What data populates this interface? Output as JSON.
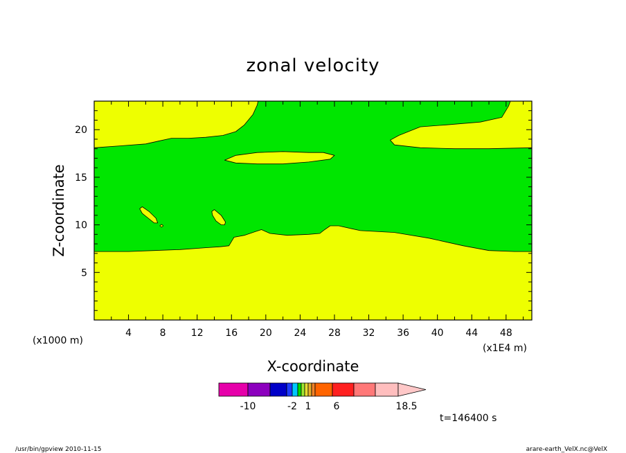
{
  "chart_data": {
    "type": "heatmap",
    "title": "zonal velocity",
    "xlabel": "X-coordinate",
    "ylabel": "Z-coordinate",
    "x_unit_left": "(x1000 m)",
    "x_unit_right": "(x1E4 m)",
    "xlim": [
      0,
      51
    ],
    "ylim": [
      0,
      23
    ],
    "xticks": [
      4,
      8,
      12,
      16,
      20,
      24,
      28,
      32,
      36,
      40,
      44,
      48
    ],
    "xtick_labels": [
      "4",
      "8",
      "12",
      "16",
      "20",
      "24",
      "28",
      "32",
      "36",
      "40",
      "44",
      "48"
    ],
    "yticks": [
      5,
      10,
      15,
      20
    ],
    "ytick_labels": [
      "5",
      "10",
      "15",
      "20"
    ],
    "background_color": "#eeff00",
    "regions": [
      {
        "name": "",
        "color": "#00e600",
        "points": [
          [
            0,
            18.1
          ],
          [
            3,
            18.3
          ],
          [
            6,
            18.5
          ],
          [
            7.5,
            18.8
          ],
          [
            9,
            19.1
          ],
          [
            11,
            19.1
          ],
          [
            13,
            19.2
          ],
          [
            15,
            19.4
          ],
          [
            16.5,
            19.8
          ],
          [
            17.5,
            20.5
          ],
          [
            18.5,
            21.6
          ],
          [
            19,
            22.6
          ],
          [
            19.1,
            23
          ],
          [
            48.5,
            23
          ],
          [
            48.3,
            22.5
          ],
          [
            47.5,
            21.3
          ],
          [
            45,
            20.8
          ],
          [
            41,
            20.5
          ],
          [
            38,
            20.3
          ],
          [
            35.5,
            19.4
          ],
          [
            34.5,
            18.9
          ],
          [
            35,
            18.4
          ],
          [
            38,
            18.1
          ],
          [
            42,
            18
          ],
          [
            46,
            18
          ],
          [
            51,
            18.1
          ],
          [
            51,
            7.2
          ],
          [
            49,
            7.2
          ],
          [
            46,
            7.3
          ],
          [
            43,
            7.8
          ],
          [
            39,
            8.6
          ],
          [
            35,
            9.2
          ],
          [
            31,
            9.4
          ],
          [
            28.5,
            9.9
          ],
          [
            27.5,
            9.9
          ],
          [
            26.7,
            9.4
          ],
          [
            26.3,
            9.1
          ],
          [
            25,
            9
          ],
          [
            22.5,
            8.9
          ],
          [
            20.5,
            9.1
          ],
          [
            19.5,
            9.5
          ],
          [
            18.8,
            9.3
          ],
          [
            17.5,
            8.9
          ],
          [
            16.3,
            8.7
          ],
          [
            16.1,
            8.4
          ],
          [
            15.7,
            7.8
          ],
          [
            14.7,
            7.7
          ],
          [
            13,
            7.6
          ],
          [
            10,
            7.4
          ],
          [
            7,
            7.3
          ],
          [
            4,
            7.2
          ],
          [
            0,
            7.2
          ]
        ]
      },
      {
        "name": "",
        "color": "#eeff00",
        "points": [
          [
            15.2,
            16.8
          ],
          [
            16.5,
            17.3
          ],
          [
            19,
            17.6
          ],
          [
            22,
            17.7
          ],
          [
            25,
            17.6
          ],
          [
            26.7,
            17.6
          ],
          [
            28,
            17.3
          ],
          [
            27.5,
            16.9
          ],
          [
            25,
            16.6
          ],
          [
            22,
            16.4
          ],
          [
            19,
            16.4
          ],
          [
            16.5,
            16.5
          ]
        ]
      },
      {
        "name": "",
        "color": "#eeff00",
        "points": [
          [
            5.3,
            11.7
          ],
          [
            5.6,
            11.9
          ],
          [
            6.4,
            11.4
          ],
          [
            7.2,
            10.7
          ],
          [
            7.4,
            10.2
          ],
          [
            7.0,
            10.2
          ],
          [
            6.3,
            10.7
          ],
          [
            5.6,
            11.2
          ]
        ]
      },
      {
        "name": "",
        "color": "#eeff00",
        "points": [
          [
            13.7,
            11.4
          ],
          [
            14,
            11.6
          ],
          [
            14.8,
            11.0
          ],
          [
            15.3,
            10.3
          ],
          [
            15.2,
            10.0
          ],
          [
            14.8,
            10.0
          ],
          [
            14.2,
            10.4
          ],
          [
            13.8,
            11.0
          ]
        ]
      },
      {
        "name": "",
        "color": "#eeff00",
        "points": [
          [
            7.65,
            9.9
          ],
          [
            7.85,
            10.05
          ],
          [
            8.05,
            9.9
          ],
          [
            7.85,
            9.75
          ]
        ]
      }
    ],
    "colorbar": {
      "colors": [
        "#e600aa",
        "#8c00be",
        "#0000c8",
        "#1e3cff",
        "#00c8ff",
        "#00dc00",
        "#a0e632",
        "#e6dc32",
        "#e6af2d",
        "#f08228",
        "#ff6400",
        "#ff2020",
        "#ff7878",
        "#ffbebe",
        "#ffc8c8"
      ],
      "widths": [
        42,
        32,
        24,
        8,
        8,
        5,
        5,
        5,
        5,
        5,
        25,
        31,
        31,
        33,
        40
      ],
      "labels": [
        "-10",
        "-2",
        "1",
        "6",
        "18.5"
      ]
    },
    "time_label": "t=146400 s",
    "footer_left": "/usr/bin/gpview   2010-11-15",
    "footer_right": "arare-earth_VelX.nc@VelX"
  }
}
